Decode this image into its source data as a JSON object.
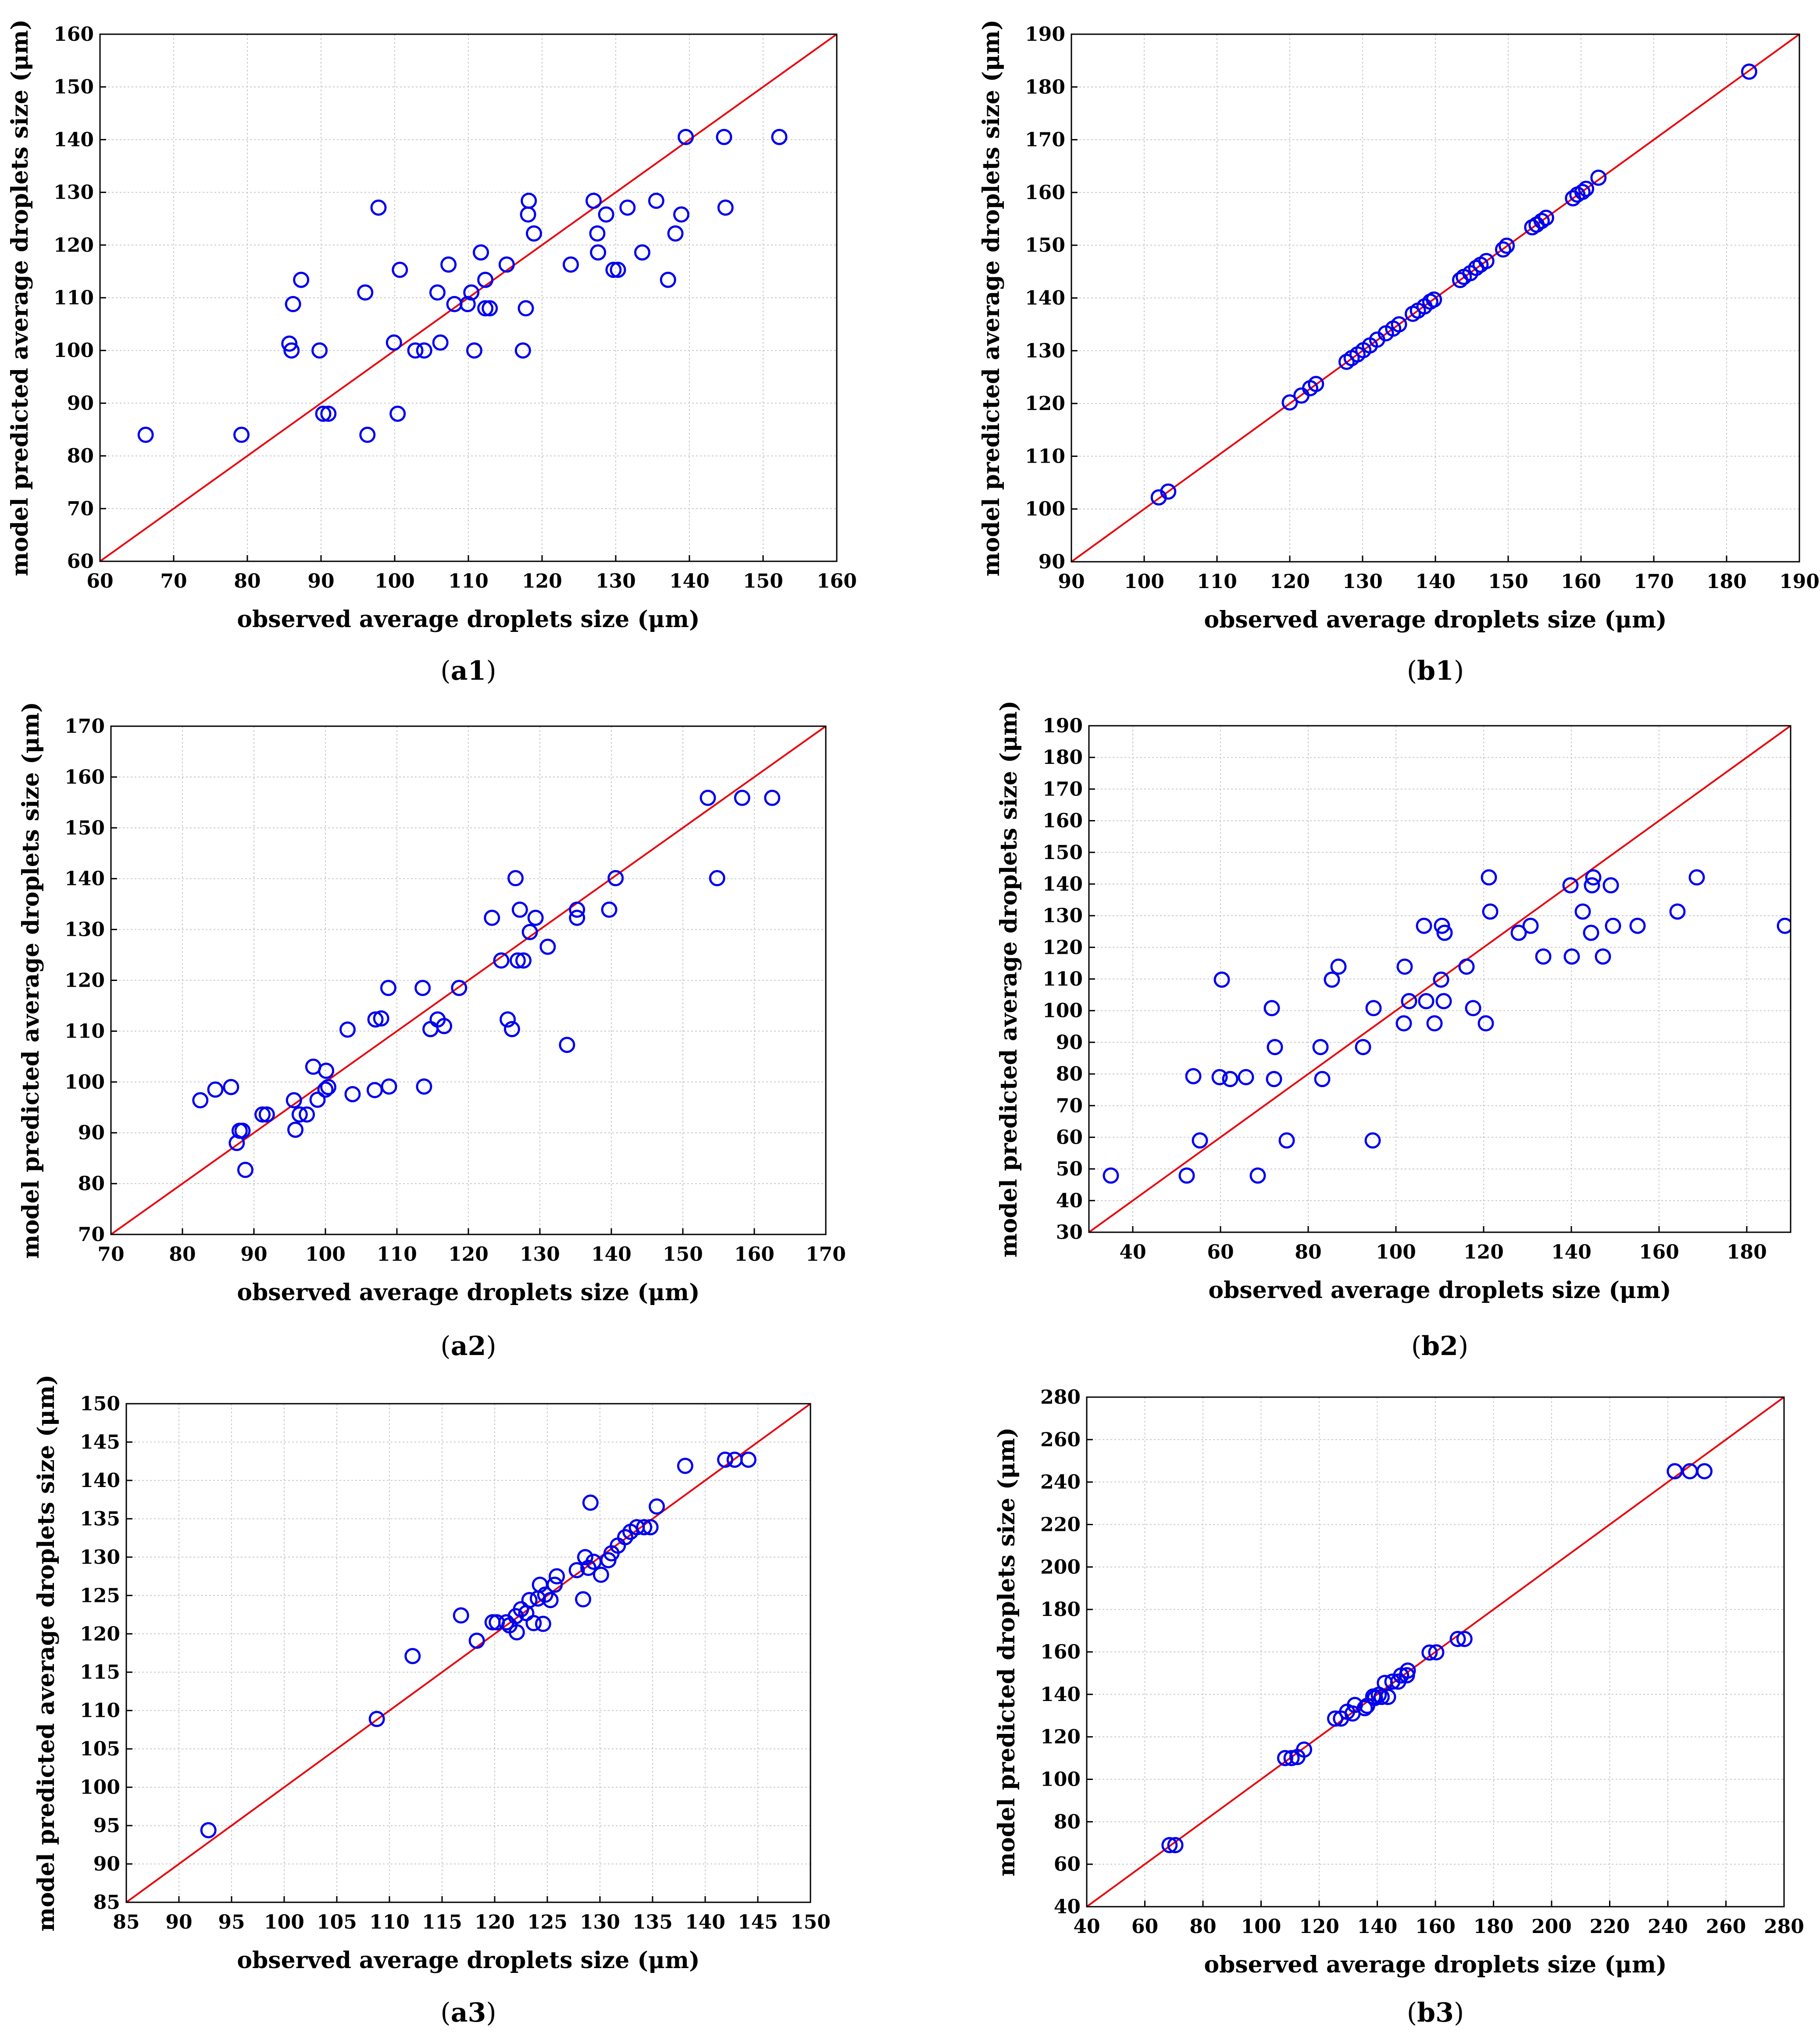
{
  "chart_data": [
    {
      "type": "scatter",
      "caption_prefix": "(",
      "caption_bold": "a1",
      "caption_suffix": ")",
      "xlabel": "observed average droplets size (μm)",
      "ylabel": "model predicted average droplets size  (μm)",
      "xlim": [
        60,
        160
      ],
      "ylim": [
        60,
        160
      ],
      "xticks": [
        60,
        70,
        80,
        90,
        100,
        110,
        120,
        130,
        140,
        150,
        160
      ],
      "yticks": [
        60,
        70,
        80,
        90,
        100,
        110,
        120,
        130,
        140,
        150,
        160
      ],
      "reference_line": [
        [
          60,
          60
        ],
        [
          160,
          160
        ]
      ],
      "points": [
        [
          66.2,
          84
        ],
        [
          79.2,
          84
        ],
        [
          85.7,
          101.3
        ],
        [
          86,
          100
        ],
        [
          86.2,
          108.8
        ],
        [
          87.3,
          113.4
        ],
        [
          89.8,
          100
        ],
        [
          90.3,
          88
        ],
        [
          91,
          88
        ],
        [
          96,
          111
        ],
        [
          96.3,
          84
        ],
        [
          97.8,
          127.1
        ],
        [
          99.9,
          101.5
        ],
        [
          100.4,
          88
        ],
        [
          100.7,
          115.3
        ],
        [
          102.8,
          100
        ],
        [
          104,
          100
        ],
        [
          105.8,
          111
        ],
        [
          106.2,
          101.5
        ],
        [
          107.3,
          116.3
        ],
        [
          108.1,
          108.8
        ],
        [
          109.9,
          108.8
        ],
        [
          110.4,
          111
        ],
        [
          110.8,
          100
        ],
        [
          111.7,
          118.6
        ],
        [
          112.3,
          113.4
        ],
        [
          112.3,
          108
        ],
        [
          112.9,
          108
        ],
        [
          115.2,
          116.3
        ],
        [
          117.4,
          100
        ],
        [
          117.8,
          108
        ],
        [
          118.1,
          125.8
        ],
        [
          118.2,
          128.4
        ],
        [
          118.9,
          122.2
        ],
        [
          123.9,
          116.3
        ],
        [
          127,
          128.4
        ],
        [
          127.5,
          122.2
        ],
        [
          127.6,
          118.6
        ],
        [
          128.7,
          125.8
        ],
        [
          129.7,
          115.3
        ],
        [
          130.3,
          115.3
        ],
        [
          131.6,
          127.1
        ],
        [
          133.6,
          118.6
        ],
        [
          135.5,
          128.4
        ],
        [
          137.1,
          113.4
        ],
        [
          138.1,
          122.2
        ],
        [
          138.9,
          125.8
        ],
        [
          139.5,
          140.5
        ],
        [
          144.7,
          140.5
        ],
        [
          144.9,
          127.1
        ],
        [
          152.2,
          140.5
        ]
      ]
    },
    {
      "type": "scatter",
      "caption_prefix": "(",
      "caption_bold": "b1",
      "caption_suffix": ")",
      "xlabel": "observed average droplets size (μm)",
      "ylabel": "model predicted average droplets size (μm)",
      "xlim": [
        90,
        190
      ],
      "ylim": [
        90,
        190
      ],
      "xticks": [
        90,
        100,
        110,
        120,
        130,
        140,
        150,
        160,
        170,
        180,
        190
      ],
      "yticks": [
        90,
        100,
        110,
        120,
        130,
        140,
        150,
        160,
        170,
        180,
        190
      ],
      "reference_line": [
        [
          90,
          90
        ],
        [
          190,
          190
        ]
      ],
      "points": [
        [
          102,
          102.2
        ],
        [
          103.3,
          103.3
        ],
        [
          120,
          120.2
        ],
        [
          121.6,
          121.5
        ],
        [
          122.8,
          122.9
        ],
        [
          123.6,
          123.7
        ],
        [
          127.8,
          127.9
        ],
        [
          128.5,
          128.6
        ],
        [
          129.3,
          129.3
        ],
        [
          130.1,
          130.1
        ],
        [
          131,
          131
        ],
        [
          132,
          132.1
        ],
        [
          133.2,
          133.3
        ],
        [
          134.2,
          134.2
        ],
        [
          135,
          135
        ],
        [
          136.9,
          137
        ],
        [
          137.6,
          137.6
        ],
        [
          138.5,
          138.4
        ],
        [
          139.3,
          139.3
        ],
        [
          139.8,
          139.7
        ],
        [
          143.4,
          143.4
        ],
        [
          143.9,
          144
        ],
        [
          144.8,
          144.7
        ],
        [
          145.6,
          145.7
        ],
        [
          146.2,
          146.3
        ],
        [
          147,
          147
        ],
        [
          149.3,
          149.2
        ],
        [
          149.8,
          149.9
        ],
        [
          153.3,
          153.4
        ],
        [
          153.9,
          153.9
        ],
        [
          154.6,
          154.6
        ],
        [
          155.2,
          155.2
        ],
        [
          158.9,
          158.9
        ],
        [
          159.5,
          159.6
        ],
        [
          160.2,
          160.1
        ],
        [
          160.7,
          160.7
        ],
        [
          162.4,
          162.8
        ],
        [
          183.1,
          182.9
        ]
      ]
    },
    {
      "type": "scatter",
      "caption_prefix": "(",
      "caption_bold": "a2",
      "caption_suffix": ")",
      "xlabel": "observed average droplets size (μm)",
      "ylabel": "model predicted average droplets size (μm)",
      "xlim": [
        70,
        170
      ],
      "ylim": [
        70,
        170
      ],
      "xticks": [
        70,
        80,
        90,
        100,
        110,
        120,
        130,
        140,
        150,
        160,
        170
      ],
      "yticks": [
        70,
        80,
        90,
        100,
        110,
        120,
        130,
        140,
        150,
        160,
        170
      ],
      "reference_line": [
        [
          70,
          70
        ],
        [
          170,
          170
        ]
      ],
      "points": [
        [
          82.5,
          96.4
        ],
        [
          84.6,
          98.5
        ],
        [
          86.8,
          99
        ],
        [
          87.6,
          88
        ],
        [
          88,
          90.4
        ],
        [
          88.4,
          90.4
        ],
        [
          88.8,
          82.7
        ],
        [
          91.2,
          93.6
        ],
        [
          91.8,
          93.6
        ],
        [
          95.6,
          96.4
        ],
        [
          95.8,
          90.6
        ],
        [
          96.4,
          93.6
        ],
        [
          97.4,
          93.6
        ],
        [
          98.3,
          103
        ],
        [
          98.9,
          96.5
        ],
        [
          100,
          98.5
        ],
        [
          100.1,
          102.2
        ],
        [
          100.4,
          99
        ],
        [
          103.1,
          110.3
        ],
        [
          103.8,
          97.6
        ],
        [
          106.9,
          98.4
        ],
        [
          107,
          112.3
        ],
        [
          107.8,
          112.5
        ],
        [
          108.8,
          118.5
        ],
        [
          108.9,
          99.1
        ],
        [
          113.6,
          118.5
        ],
        [
          113.8,
          99.1
        ],
        [
          114.7,
          110.4
        ],
        [
          115.7,
          112.3
        ],
        [
          116.6,
          111
        ],
        [
          118.7,
          118.5
        ],
        [
          123.3,
          132.3
        ],
        [
          124.6,
          123.9
        ],
        [
          125.5,
          112.3
        ],
        [
          126.1,
          110.4
        ],
        [
          126.6,
          140.1
        ],
        [
          126.9,
          123.9
        ],
        [
          127.2,
          133.9
        ],
        [
          127.7,
          123.9
        ],
        [
          128.6,
          129.5
        ],
        [
          129.4,
          132.3
        ],
        [
          131.1,
          126.6
        ],
        [
          133.8,
          107.3
        ],
        [
          135.2,
          132.3
        ],
        [
          135.2,
          133.9
        ],
        [
          139.7,
          133.9
        ],
        [
          140.6,
          140.1
        ],
        [
          153.5,
          155.9
        ],
        [
          154.8,
          140.1
        ],
        [
          158.3,
          155.9
        ],
        [
          162.5,
          155.9
        ]
      ]
    },
    {
      "type": "scatter",
      "caption_prefix": "(",
      "caption_bold": "b2",
      "caption_suffix": ")",
      "xlabel": "observed average droplets size (μm)",
      "ylabel": "model predicted average droplets size  (μm)",
      "xlim": [
        30,
        190
      ],
      "ylim": [
        30,
        190
      ],
      "xticks": [
        40,
        60,
        80,
        100,
        120,
        140,
        160,
        180
      ],
      "yticks": [
        30,
        40,
        50,
        60,
        70,
        80,
        90,
        100,
        110,
        120,
        130,
        140,
        150,
        160,
        170,
        180,
        190
      ],
      "reference_line": [
        [
          30,
          30
        ],
        [
          190,
          190
        ]
      ],
      "points": [
        [
          35,
          47.9
        ],
        [
          52.3,
          47.9
        ],
        [
          53.8,
          79.3
        ],
        [
          55.3,
          59
        ],
        [
          59.8,
          79
        ],
        [
          60.3,
          109.8
        ],
        [
          62.2,
          78.4
        ],
        [
          65.8,
          79
        ],
        [
          68.5,
          47.9
        ],
        [
          71.7,
          100.8
        ],
        [
          72.2,
          78.4
        ],
        [
          72.4,
          88.5
        ],
        [
          75.1,
          59
        ],
        [
          85.4,
          109.8
        ],
        [
          86.9,
          113.9
        ],
        [
          82.8,
          88.5
        ],
        [
          83.2,
          78.4
        ],
        [
          92.5,
          88.5
        ],
        [
          94.7,
          59
        ],
        [
          94.9,
          100.8
        ],
        [
          101.8,
          96
        ],
        [
          102,
          113.9
        ],
        [
          103,
          103
        ],
        [
          106.4,
          126.8
        ],
        [
          106.9,
          103
        ],
        [
          108.8,
          96
        ],
        [
          110.3,
          109.8
        ],
        [
          110.5,
          126.8
        ],
        [
          110.9,
          103
        ],
        [
          111.1,
          124.6
        ],
        [
          116.1,
          113.9
        ],
        [
          117.6,
          100.8
        ],
        [
          120.5,
          96
        ],
        [
          121.2,
          142.1
        ],
        [
          121.5,
          131.3
        ],
        [
          128,
          124.6
        ],
        [
          130.7,
          126.8
        ],
        [
          133.6,
          117.1
        ],
        [
          139.8,
          139.6
        ],
        [
          140.1,
          117.1
        ],
        [
          142.6,
          131.3
        ],
        [
          144.5,
          124.6
        ],
        [
          144.7,
          139.6
        ],
        [
          145,
          142.1
        ],
        [
          147.2,
          117.1
        ],
        [
          149,
          139.6
        ],
        [
          149.5,
          126.8
        ],
        [
          155.1,
          126.8
        ],
        [
          164.2,
          131.3
        ],
        [
          168.6,
          142.1
        ],
        [
          188.7,
          126.8
        ]
      ]
    },
    {
      "type": "scatter",
      "caption_prefix": "(",
      "caption_bold": "a3",
      "caption_suffix": ")",
      "xlabel": "observed average droplets size (μm)",
      "ylabel": "model predicted average droplets size (μm)",
      "xlim": [
        85,
        150
      ],
      "ylim": [
        85,
        150
      ],
      "xticks": [
        85,
        90,
        95,
        100,
        105,
        110,
        115,
        120,
        125,
        130,
        135,
        140,
        145,
        150
      ],
      "yticks": [
        85,
        90,
        95,
        100,
        105,
        110,
        115,
        120,
        125,
        130,
        135,
        140,
        145,
        150
      ],
      "reference_line": [
        [
          85,
          85
        ],
        [
          150,
          150
        ]
      ],
      "points": [
        [
          92.8,
          94.4
        ],
        [
          108.8,
          108.9
        ],
        [
          112.2,
          117.1
        ],
        [
          116.8,
          122.4
        ],
        [
          118.3,
          119.1
        ],
        [
          119.8,
          121.5
        ],
        [
          120.2,
          121.5
        ],
        [
          121.1,
          121.5
        ],
        [
          121.4,
          121.1
        ],
        [
          122,
          122.3
        ],
        [
          122.1,
          120.2
        ],
        [
          122.5,
          123.2
        ],
        [
          123,
          122.7
        ],
        [
          123.3,
          124.4
        ],
        [
          123.7,
          121.4
        ],
        [
          124.1,
          124.6
        ],
        [
          124.3,
          126.4
        ],
        [
          124.6,
          121.3
        ],
        [
          124.8,
          125.1
        ],
        [
          125.3,
          124.4
        ],
        [
          125.7,
          126.4
        ],
        [
          125.9,
          127.5
        ],
        [
          127.8,
          128.3
        ],
        [
          128.4,
          124.5
        ],
        [
          128.6,
          130
        ],
        [
          128.9,
          128.6
        ],
        [
          129.1,
          137.1
        ],
        [
          129.4,
          129.4
        ],
        [
          130.1,
          127.7
        ],
        [
          130.8,
          129.6
        ],
        [
          131.1,
          130.5
        ],
        [
          131.7,
          131.5
        ],
        [
          132.4,
          132.6
        ],
        [
          132.9,
          133.3
        ],
        [
          133.5,
          133.9
        ],
        [
          134.2,
          133.9
        ],
        [
          134.8,
          133.9
        ],
        [
          135.4,
          136.6
        ],
        [
          138.1,
          141.9
        ],
        [
          141.9,
          142.7
        ],
        [
          142.8,
          142.7
        ],
        [
          144.1,
          142.7
        ]
      ]
    },
    {
      "type": "scatter",
      "caption_prefix": "(",
      "caption_bold": "b3",
      "caption_suffix": ")",
      "xlabel": "observed average droplets size (μm)",
      "ylabel": "model predicted droplets size (μm)",
      "xlim": [
        40,
        280
      ],
      "ylim": [
        40,
        280
      ],
      "xticks": [
        40,
        60,
        80,
        100,
        120,
        140,
        160,
        180,
        200,
        220,
        240,
        260,
        280
      ],
      "yticks": [
        40,
        60,
        80,
        100,
        120,
        140,
        160,
        180,
        200,
        220,
        240,
        260,
        280
      ],
      "reference_line": [
        [
          40,
          40
        ],
        [
          280,
          280
        ]
      ],
      "points": [
        [
          68.5,
          69
        ],
        [
          70.5,
          69
        ],
        [
          108.3,
          110
        ],
        [
          110.5,
          110
        ],
        [
          112.5,
          110.5
        ],
        [
          114.8,
          114
        ],
        [
          125.5,
          128.6
        ],
        [
          127.5,
          128.6
        ],
        [
          129.6,
          131.8
        ],
        [
          131.5,
          131
        ],
        [
          132.3,
          135
        ],
        [
          135.7,
          133.5
        ],
        [
          136.5,
          134.6
        ],
        [
          138.6,
          139
        ],
        [
          139.2,
          138.3
        ],
        [
          140.5,
          139.8
        ],
        [
          141.5,
          138.8
        ],
        [
          142.6,
          145.4
        ],
        [
          143.7,
          138.8
        ],
        [
          145.2,
          146
        ],
        [
          147.2,
          146
        ],
        [
          148.2,
          148.9
        ],
        [
          150.2,
          149
        ],
        [
          150.5,
          151.2
        ],
        [
          158,
          159.7
        ],
        [
          160.3,
          159.8
        ],
        [
          167.7,
          166.1
        ],
        [
          170,
          166.1
        ],
        [
          242.4,
          245.1
        ],
        [
          247.6,
          245.1
        ],
        [
          252.6,
          245.1
        ]
      ]
    }
  ]
}
